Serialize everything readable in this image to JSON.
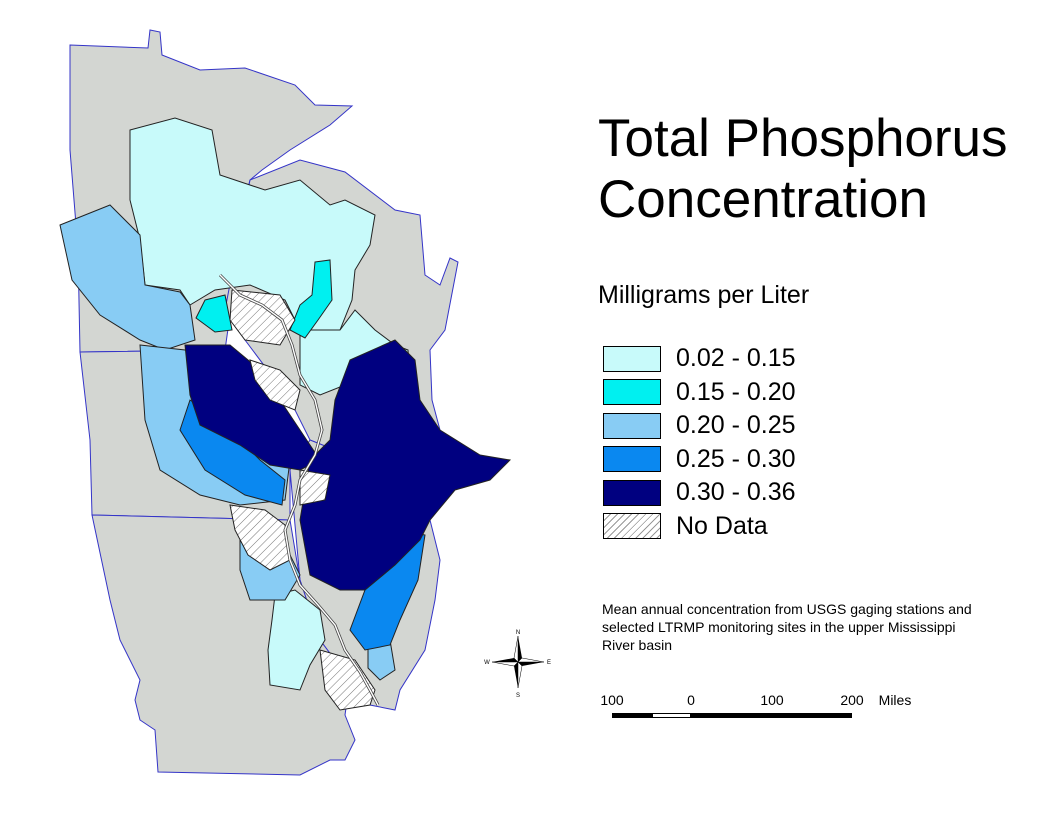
{
  "title": "Total Phosphorus\nConcentration",
  "units": "Milligrams per Liter",
  "legend": [
    {
      "label": "0.02 - 0.15",
      "color": "#c8fafa"
    },
    {
      "label": "0.15 - 0.20",
      "color": "#00f0f0"
    },
    {
      "label": "0.20 - 0.25",
      "color": "#88ccf4"
    },
    {
      "label": "0.25 - 0.30",
      "color": "#0a88f0"
    },
    {
      "label": "0.30 - 0.36",
      "color": "#000080"
    },
    {
      "label": "No Data",
      "pattern": "hatched"
    }
  ],
  "note": "Mean annual concentration from USGS gaging stations and selected LTRMP monitoring sites in the upper Mississippi River basin",
  "scale": {
    "labels": [
      "100",
      "0",
      "100",
      "200"
    ],
    "unit": "Miles"
  },
  "compass": {
    "n": "N",
    "s": "S",
    "e": "E",
    "w": "W"
  },
  "colors": {
    "state_fill": "#d3d6d2",
    "state_border": "#3434c8"
  }
}
